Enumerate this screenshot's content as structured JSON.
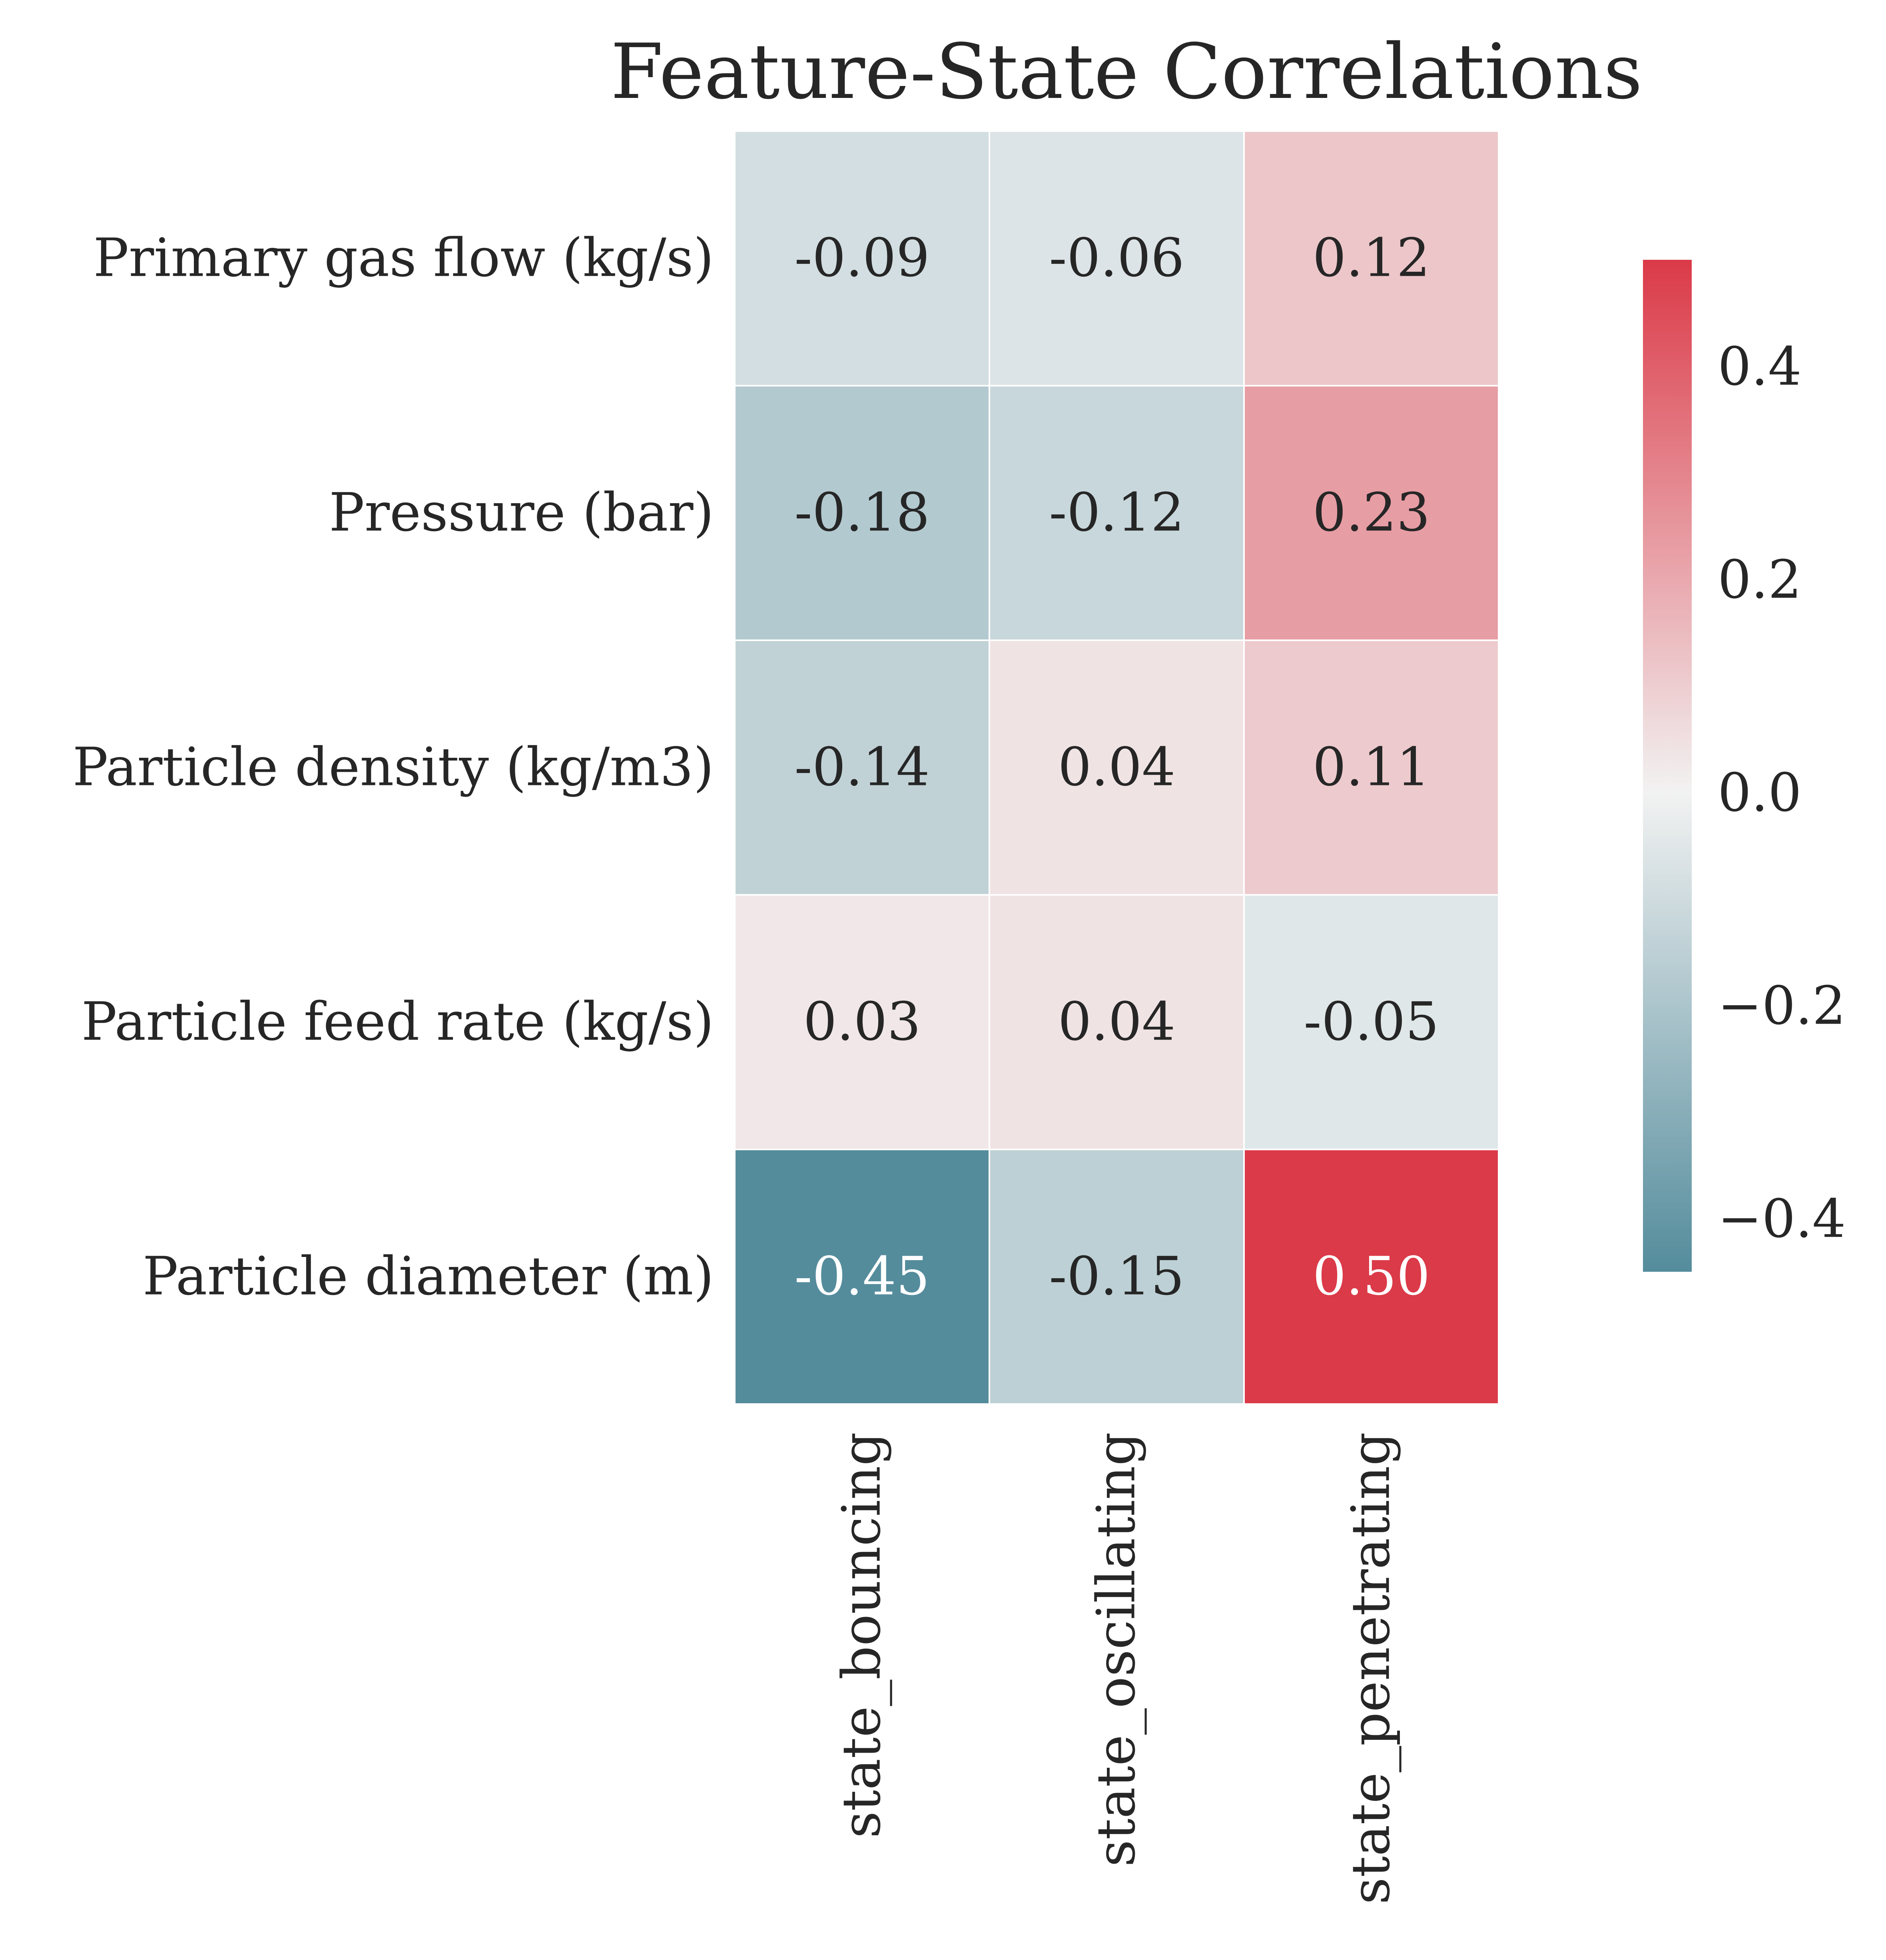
{
  "chart_data": {
    "type": "heatmap",
    "title": "Feature-State Correlations",
    "rows": [
      "Primary gas flow (kg/s)",
      "Pressure (bar)",
      "Particle density (kg/m3)",
      "Particle feed rate (kg/s)",
      "Particle diameter (m)"
    ],
    "columns": [
      "state_bouncing",
      "state_oscillating",
      "state_penetrating"
    ],
    "values": [
      [
        -0.09,
        -0.06,
        0.12
      ],
      [
        -0.18,
        -0.12,
        0.23
      ],
      [
        -0.14,
        0.04,
        0.11
      ],
      [
        0.03,
        0.04,
        -0.05
      ],
      [
        -0.45,
        -0.15,
        0.5
      ]
    ],
    "value_labels": [
      [
        "-0.09",
        "-0.06",
        "0.12"
      ],
      [
        "-0.18",
        "-0.12",
        "0.23"
      ],
      [
        "-0.14",
        "0.04",
        "0.11"
      ],
      [
        "0.03",
        "0.04",
        "-0.05"
      ],
      [
        "-0.45",
        "-0.15",
        "0.50"
      ]
    ],
    "colorbar": {
      "range": [
        -0.45,
        0.5
      ],
      "ticks": [
        0.4,
        0.2,
        0.0,
        -0.2,
        -0.4
      ],
      "tick_labels": [
        "0.4",
        "0.2",
        "0.0",
        "−0.2",
        "−0.4"
      ],
      "colors": {
        "low": "#548c9c",
        "mid": "#f2f2f2",
        "high": "#db3a48"
      }
    },
    "grid_lines_color": "#ffffff",
    "text_color_dark": "#262626",
    "text_color_light": "#ffffff"
  }
}
